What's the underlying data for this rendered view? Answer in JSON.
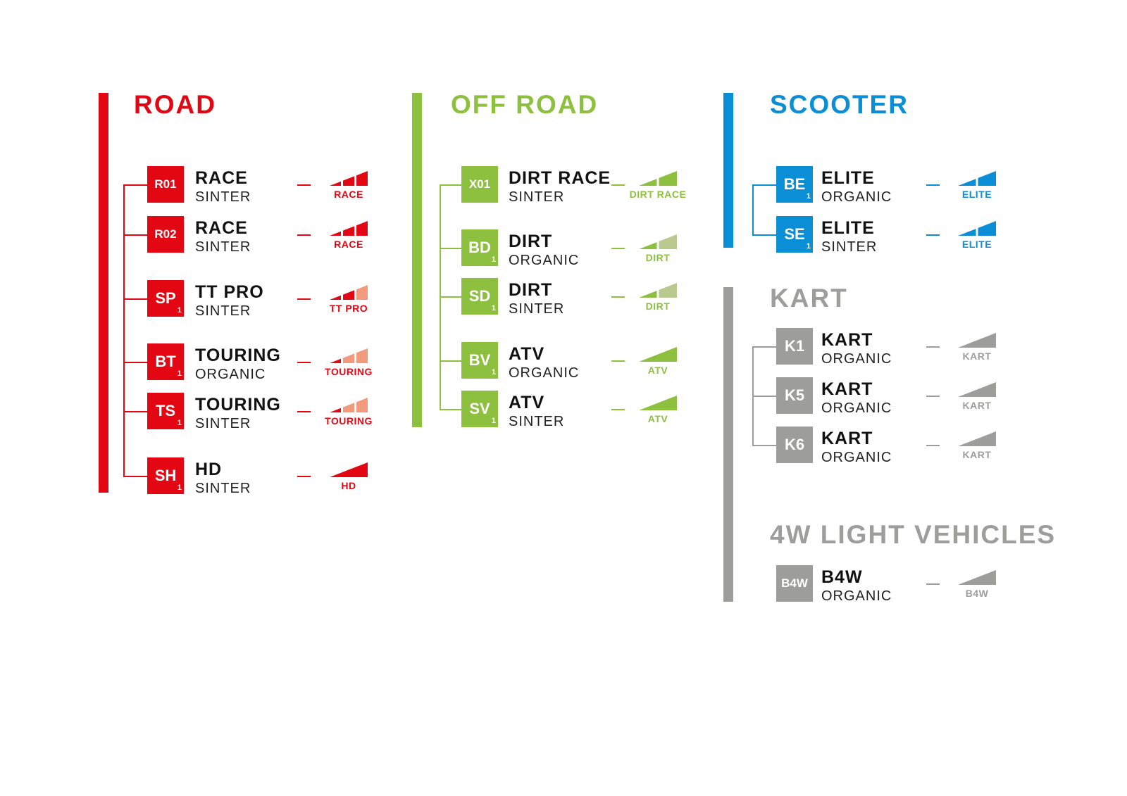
{
  "sections": [
    {
      "id": "road",
      "title": "ROAD",
      "color": "#e30613",
      "light": "#f19a7e",
      "items": [
        {
          "code": "R01",
          "sub": "",
          "name": "RACE",
          "type": "SINTER",
          "level_label": "RACE",
          "segments": 3,
          "filled": 3
        },
        {
          "code": "R02",
          "sub": "",
          "name": "RACE",
          "type": "SINTER",
          "level_label": "RACE",
          "segments": 3,
          "filled": 3
        },
        {
          "code": "SP",
          "sub": "1",
          "name": "TT PRO",
          "type": "SINTER",
          "level_label": "TT PRO",
          "segments": 3,
          "filled": 2
        },
        {
          "code": "BT",
          "sub": "1",
          "name": "TOURING",
          "type": "ORGANIC",
          "level_label": "TOURING",
          "segments": 3,
          "filled": 1
        },
        {
          "code": "TS",
          "sub": "1",
          "name": "TOURING",
          "type": "SINTER",
          "level_label": "TOURING",
          "segments": 3,
          "filled": 1
        },
        {
          "code": "SH",
          "sub": "1",
          "name": "HD",
          "type": "SINTER",
          "level_label": "HD",
          "segments": 1,
          "filled": 1
        }
      ]
    },
    {
      "id": "offroad",
      "title": "OFF ROAD",
      "color": "#8dc03f",
      "light": "#b9c98f",
      "items": [
        {
          "code": "X01",
          "sub": "",
          "name": "DIRT RACE",
          "type": "SINTER",
          "level_label": "DIRT RACE",
          "segments": 2,
          "filled": 2
        },
        {
          "code": "BD",
          "sub": "1",
          "name": "DIRT",
          "type": "ORGANIC",
          "level_label": "DIRT",
          "segments": 2,
          "filled": 1
        },
        {
          "code": "SD",
          "sub": "1",
          "name": "DIRT",
          "type": "SINTER",
          "level_label": "DIRT",
          "segments": 2,
          "filled": 1
        },
        {
          "code": "BV",
          "sub": "1",
          "name": "ATV",
          "type": "ORGANIC",
          "level_label": "ATV",
          "segments": 1,
          "filled": 1
        },
        {
          "code": "SV",
          "sub": "1",
          "name": "ATV",
          "type": "SINTER",
          "level_label": "ATV",
          "segments": 1,
          "filled": 1
        }
      ]
    },
    {
      "id": "scooter",
      "title": "SCOOTER",
      "color": "#0a8fd6",
      "light": "#0a8fd6",
      "items": [
        {
          "code": "BE",
          "sub": "1",
          "name": "ELITE",
          "type": "ORGANIC",
          "level_label": "ELITE",
          "segments": 2,
          "filled": 2
        },
        {
          "code": "SE",
          "sub": "1",
          "name": "ELITE",
          "type": "SINTER",
          "level_label": "ELITE",
          "segments": 2,
          "filled": 2
        }
      ]
    },
    {
      "id": "kart",
      "title": "KART",
      "color": "#9d9d9c",
      "light": "#9d9d9c",
      "items": [
        {
          "code": "K1",
          "sub": "",
          "name": "KART",
          "type": "ORGANIC",
          "level_label": "KART",
          "segments": 1,
          "filled": 1
        },
        {
          "code": "K5",
          "sub": "",
          "name": "KART",
          "type": "ORGANIC",
          "level_label": "KART",
          "segments": 1,
          "filled": 1
        },
        {
          "code": "K6",
          "sub": "",
          "name": "KART",
          "type": "ORGANIC",
          "level_label": "KART",
          "segments": 1,
          "filled": 1
        }
      ]
    },
    {
      "id": "light4w",
      "title": "4W LIGHT VEHICLES",
      "color": "#9d9d9c",
      "light": "#9d9d9c",
      "items": [
        {
          "code": "B4W",
          "sub": "",
          "name": "B4W",
          "type": "ORGANIC",
          "level_label": "B4W",
          "segments": 1,
          "filled": 1
        }
      ]
    }
  ]
}
